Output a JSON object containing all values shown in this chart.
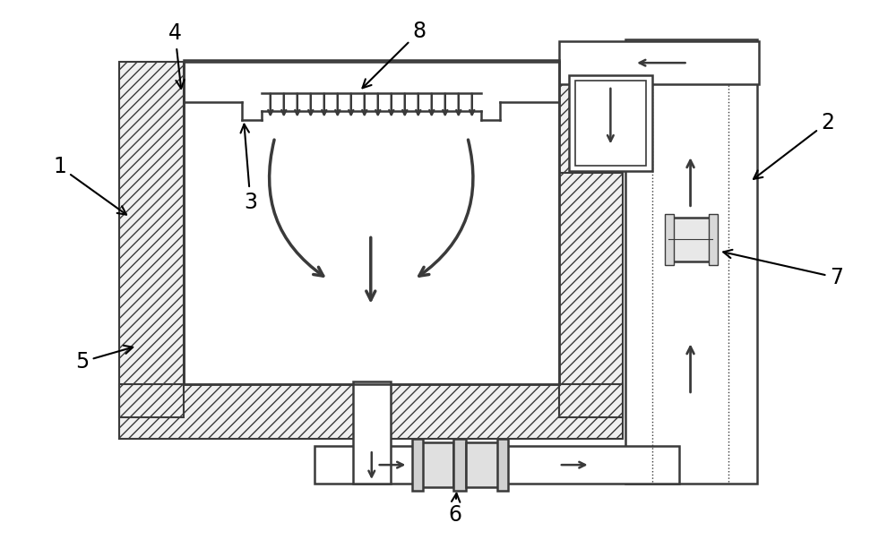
{
  "bg_color": "#ffffff",
  "lc": "#3a3a3a",
  "lc_light": "#888888",
  "fig_width": 10.0,
  "fig_height": 6.22,
  "dpi": 100
}
